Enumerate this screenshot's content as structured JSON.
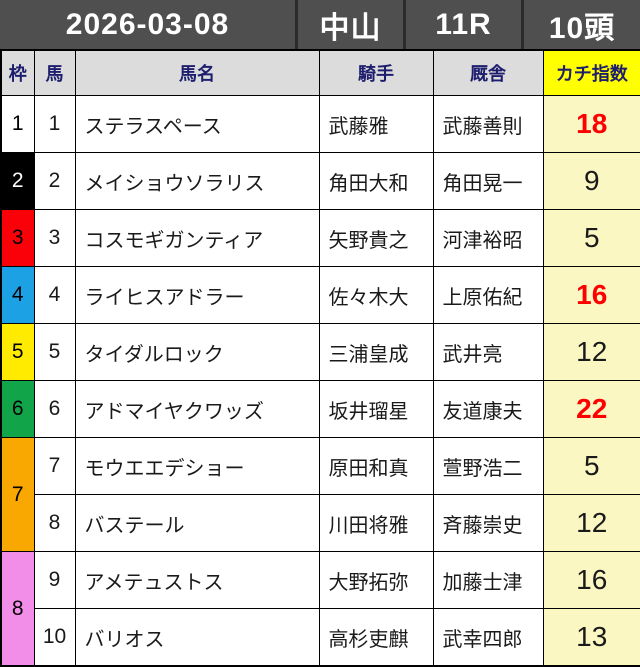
{
  "header": {
    "date": "2026-03-08",
    "track": "中山",
    "race": "11R",
    "heads": "10頭"
  },
  "table": {
    "columns": {
      "waku": "枠",
      "num": "馬",
      "name": "馬名",
      "jockey": "騎手",
      "stable": "厩舎",
      "index": "カチ指数"
    },
    "rows": [
      {
        "waku": "1",
        "waku_bg": "#ffffff",
        "waku_fg": "#000000",
        "span": 1,
        "num": "1",
        "name": "ステラスペース",
        "jockey": "武藤雅",
        "stable": "武藤善則",
        "index": "18",
        "hot": true
      },
      {
        "waku": "2",
        "waku_bg": "#000000",
        "waku_fg": "#ffffff",
        "span": 1,
        "num": "2",
        "name": "メイショウソラリス",
        "jockey": "角田大和",
        "stable": "角田晃一",
        "index": "9",
        "hot": false
      },
      {
        "waku": "3",
        "waku_bg": "#fa0008",
        "waku_fg": "#000000",
        "span": 1,
        "num": "3",
        "name": "コスモギガンティア",
        "jockey": "矢野貴之",
        "stable": "河津裕昭",
        "index": "5",
        "hot": false
      },
      {
        "waku": "4",
        "waku_bg": "#1ba1e4",
        "waku_fg": "#000000",
        "span": 1,
        "num": "4",
        "name": "ライヒスアドラー",
        "jockey": "佐々木大",
        "stable": "上原佑紀",
        "index": "16",
        "hot": true
      },
      {
        "waku": "5",
        "waku_bg": "#ffeb00",
        "waku_fg": "#000000",
        "span": 1,
        "num": "5",
        "name": "タイダルロック",
        "jockey": "三浦皇成",
        "stable": "武井亮",
        "index": "12",
        "hot": false
      },
      {
        "waku": "6",
        "waku_bg": "#12a449",
        "waku_fg": "#000000",
        "span": 1,
        "num": "6",
        "name": "アドマイヤクワッズ",
        "jockey": "坂井瑠星",
        "stable": "友道康夫",
        "index": "22",
        "hot": true
      },
      {
        "waku": "7",
        "waku_bg": "#f8a800",
        "waku_fg": "#000000",
        "span": 2,
        "num": "7",
        "name": "モウエエデショー",
        "jockey": "原田和真",
        "stable": "萱野浩二",
        "index": "5",
        "hot": false
      },
      {
        "waku": null,
        "span": 0,
        "num": "8",
        "name": "バステール",
        "jockey": "川田将雅",
        "stable": "斉藤崇史",
        "index": "12",
        "hot": false
      },
      {
        "waku": "8",
        "waku_bg": "#f28de8",
        "waku_fg": "#000000",
        "span": 2,
        "num": "9",
        "name": "アメテュストス",
        "jockey": "大野拓弥",
        "stable": "加藤士津",
        "index": "16",
        "hot": false
      },
      {
        "waku": null,
        "span": 0,
        "num": "10",
        "name": "バリオス",
        "jockey": "高杉吏麒",
        "stable": "武幸四郎",
        "index": "13",
        "hot": false
      }
    ]
  },
  "colors": {
    "topbar_bg": "#4f4f4f",
    "header_bg": "#dcdcdc",
    "header_text": "#1e1e6e",
    "index_header_bg": "#ffff00",
    "index_cell_bg": "#faf7c3",
    "hot_index_text": "#ff0000"
  }
}
